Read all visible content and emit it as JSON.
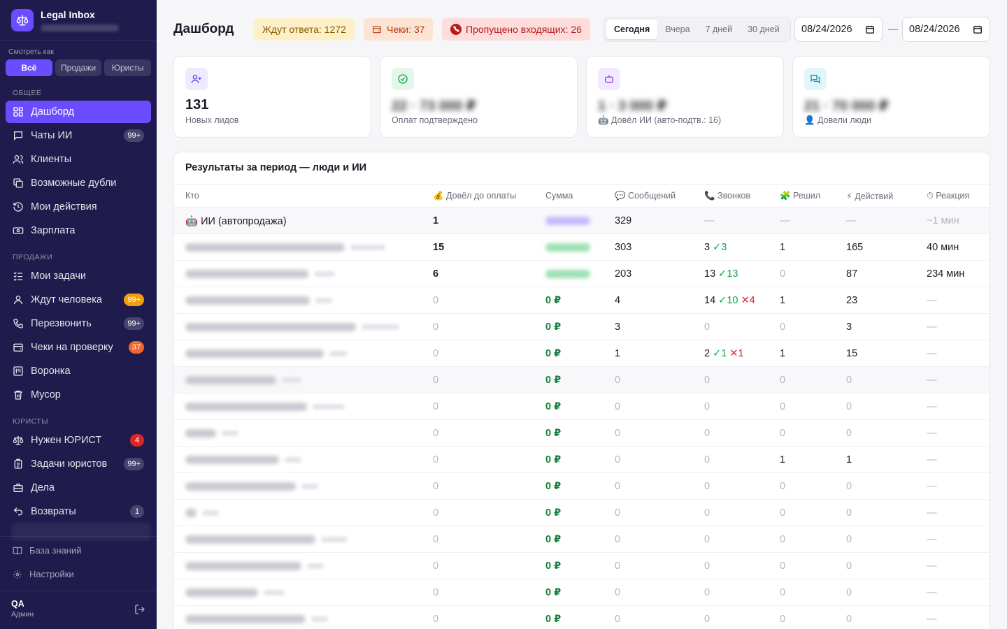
{
  "brand": {
    "title": "Legal Inbox"
  },
  "view": {
    "label": "Смотреть как",
    "options": [
      "Всё",
      "Продажи",
      "Юристы"
    ]
  },
  "sections": {
    "general": "Общее",
    "sales": "Продажи",
    "lawyers": "Юристы"
  },
  "nav": [
    {
      "label": "Дашборд",
      "icon": "dashboard-icon",
      "active": true
    },
    {
      "label": "Чаты ИИ",
      "icon": "chat-icon",
      "badge": "99+"
    },
    {
      "label": "Клиенты",
      "icon": "users-icon"
    },
    {
      "label": "Возможные дубли",
      "icon": "copy-icon"
    },
    {
      "label": "Мои действия",
      "icon": "history-icon"
    },
    {
      "label": "Зарплата",
      "icon": "money-icon"
    },
    {
      "label": "Мои задачи",
      "icon": "tasks-icon"
    },
    {
      "label": "Ждут человека",
      "icon": "person-icon",
      "badge": "99+",
      "badge_color": "#f59e0b"
    },
    {
      "label": "Перезвонить",
      "icon": "phone-icon",
      "badge": "99+"
    },
    {
      "label": "Чеки на проверку",
      "icon": "receipt-icon",
      "badge": "37",
      "badge_color": "#f2652b"
    },
    {
      "label": "Воронка",
      "icon": "funnel-icon"
    },
    {
      "label": "Мусор",
      "icon": "trash-icon"
    },
    {
      "label": "Нужен ЮРИСТ",
      "icon": "scales-icon",
      "badge": "4",
      "badge_color": "#dc2626"
    },
    {
      "label": "Задачи юристов",
      "icon": "clipboard-icon",
      "badge": "99+"
    },
    {
      "label": "Дела",
      "icon": "briefcase-icon"
    },
    {
      "label": "Возвраты",
      "icon": "undo-icon",
      "badge": "1"
    }
  ],
  "footer": {
    "knowledge": "База знаний",
    "settings": "Настройки",
    "user_name": "QA",
    "user_role": "Админ"
  },
  "header": {
    "title": "Дашборд",
    "pill_waiting": "Ждут ответа: 1272",
    "pill_checks": "Чеки: 37",
    "pill_missed": "Пропущено входящих: 26",
    "periods": [
      "Сегодня",
      "Вчера",
      "7 дней",
      "30 дней"
    ],
    "date_from": "08/24/2026",
    "date_to": "08/24/2026",
    "dash": "—"
  },
  "stats": [
    {
      "value": "131",
      "label": "Новых лидов",
      "icon": "user-plus-icon"
    },
    {
      "value": "22 · 73 000 ₽",
      "label": "Оплат подтверждено",
      "icon": "check-circle-icon",
      "blurred": true
    },
    {
      "value": "1 · 3 000 ₽",
      "label": "🤖 Довёл ИИ (авто-подтв.: 16)",
      "icon": "robot-icon",
      "blurred": true
    },
    {
      "value": "21 · 70 000 ₽",
      "label": "👤 Довели люди",
      "icon": "chats-icon",
      "blurred": true
    }
  ],
  "table": {
    "title": "Результаты за период — люди и ИИ",
    "columns": [
      "Кто",
      "💰 Довёл до оплаты",
      "Сумма",
      "💬 Сообщений",
      "📞 Звонков",
      "🧩 Решил",
      "⚡ Действий",
      "⏱ Реакция"
    ],
    "ai_row": {
      "name": "🤖 ИИ (автопродажа)",
      "paid": "1",
      "messages": "329",
      "calls": "—",
      "solved": "—",
      "actions": "—",
      "reaction": "~1 мин"
    },
    "rows": [
      {
        "paid": "15",
        "messages": "303",
        "calls": "3",
        "calls_ok": "✓3",
        "calls_bad": "",
        "solved": "1",
        "actions": "165",
        "reaction": "40 мин",
        "sum_blur": true
      },
      {
        "paid": "6",
        "messages": "203",
        "calls": "13",
        "calls_ok": "✓13",
        "calls_bad": "",
        "solved": "0",
        "actions": "87",
        "reaction": "234 мин",
        "sum_blur": true
      },
      {
        "paid": "0",
        "sum": "0 ₽",
        "messages": "4",
        "calls": "14",
        "calls_ok": "✓10",
        "calls_bad": "✕4",
        "solved": "1",
        "actions": "23",
        "reaction": "—"
      },
      {
        "paid": "0",
        "sum": "0 ₽",
        "messages": "3",
        "calls": "0",
        "calls_ok": "",
        "calls_bad": "",
        "solved": "0",
        "actions": "3",
        "reaction": "—"
      },
      {
        "paid": "0",
        "sum": "0 ₽",
        "messages": "1",
        "calls": "2",
        "calls_ok": "✓1",
        "calls_bad": "✕1",
        "solved": "1",
        "actions": "15",
        "reaction": "—"
      },
      {
        "paid": "0",
        "sum": "0 ₽",
        "messages": "0",
        "calls": "0",
        "calls_ok": "",
        "calls_bad": "",
        "solved": "0",
        "actions": "0",
        "reaction": "—"
      },
      {
        "paid": "0",
        "sum": "0 ₽",
        "messages": "0",
        "calls": "0",
        "calls_ok": "",
        "calls_bad": "",
        "solved": "0",
        "actions": "0",
        "reaction": "—"
      },
      {
        "paid": "0",
        "sum": "0 ₽",
        "messages": "0",
        "calls": "0",
        "calls_ok": "",
        "calls_bad": "",
        "solved": "0",
        "actions": "0",
        "reaction": "—"
      },
      {
        "paid": "0",
        "sum": "0 ₽",
        "messages": "0",
        "calls": "0",
        "calls_ok": "",
        "calls_bad": "",
        "solved": "1",
        "actions": "1",
        "reaction": "—"
      },
      {
        "paid": "0",
        "sum": "0 ₽",
        "messages": "0",
        "calls": "0",
        "calls_ok": "",
        "calls_bad": "",
        "solved": "0",
        "actions": "0",
        "reaction": "—"
      },
      {
        "paid": "0",
        "sum": "0 ₽",
        "messages": "0",
        "calls": "0",
        "calls_ok": "",
        "calls_bad": "",
        "solved": "0",
        "actions": "0",
        "reaction": "—"
      },
      {
        "paid": "0",
        "sum": "0 ₽",
        "messages": "0",
        "calls": "0",
        "calls_ok": "",
        "calls_bad": "",
        "solved": "0",
        "actions": "0",
        "reaction": "—"
      },
      {
        "paid": "0",
        "sum": "0 ₽",
        "messages": "0",
        "calls": "0",
        "calls_ok": "",
        "calls_bad": "",
        "solved": "0",
        "actions": "0",
        "reaction": "—"
      },
      {
        "paid": "0",
        "sum": "0 ₽",
        "messages": "0",
        "calls": "0",
        "calls_ok": "",
        "calls_bad": "",
        "solved": "0",
        "actions": "0",
        "reaction": "—"
      },
      {
        "paid": "0",
        "sum": "0 ₽",
        "messages": "0",
        "calls": "0",
        "calls_ok": "",
        "calls_bad": "",
        "solved": "0",
        "actions": "0",
        "reaction": "—"
      }
    ]
  },
  "colors": {
    "sidebar": "#1f1b4d",
    "accent": "#6b4dff",
    "money": "#15803d",
    "ok": "#16a34a",
    "bad": "#dc2626"
  }
}
